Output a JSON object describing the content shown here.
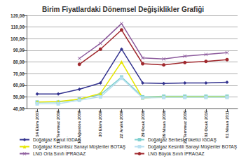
{
  "chart_data": {
    "type": "line",
    "title": "Birim Fiyatlardaki Dönemsel Değişiklikler Grafiği",
    "categories": [
      "14 Ekim 2007",
      "15 Temmuz 2008",
      "10 Ağustos 2008",
      "30 Ekim 2008",
      "22 Aralık 2008",
      "29 Ocak 2009",
      "09 Nisan 2009",
      "29 Temmuz 2009",
      "03 Ocak 2010",
      "01 Nisan 2011"
    ],
    "series": [
      {
        "name": "Doğalgaz Konut İGDAŞ",
        "color": "#33338f",
        "marker": "diamond",
        "values": [
          52.5,
          52.5,
          56.5,
          62,
          91,
          62,
          61.5,
          62,
          62,
          62.5
        ]
      },
      {
        "name": "Doğalgaz Serbest Tüketici İGDAŞ",
        "color": "#7fd0d0",
        "marker": "square",
        "values": [
          45.5,
          45.5,
          48,
          52,
          67,
          50,
          50.5,
          50.5,
          50.5,
          50.5
        ]
      },
      {
        "name": "Doğalgaz Kesintisiz Sanayi Müşteriler BOTAŞ",
        "color": "#e6e600",
        "marker": "triangle",
        "values": [
          45.5,
          46,
          48,
          53,
          80,
          49,
          50,
          50,
          50,
          50
        ]
      },
      {
        "name": "Doğalgaz Kesintili Sanayi Müşteriler BOTAŞ",
        "color": "#b8e0f0",
        "marker": "square",
        "values": [
          44,
          44,
          47,
          50,
          66,
          49,
          49.5,
          49.5,
          49.5,
          49.5
        ]
      },
      {
        "name": "LNG Orta Sınıfı İPRAGAZ",
        "color": "#8c5a9c",
        "marker": "x",
        "values": [
          null,
          null,
          83,
          96,
          113,
          83.5,
          82.5,
          85,
          86.5,
          88
        ]
      },
      {
        "name": "LNG Büyük Sınıfı İPRAGAZ",
        "color": "#a0282d",
        "marker": "circle",
        "values": [
          null,
          null,
          78,
          91,
          107.5,
          78.5,
          77.5,
          79.5,
          80.5,
          82
        ]
      }
    ],
    "ylim": [
      40,
      120
    ],
    "yticks": [
      {
        "value": 40,
        "label": "40,00"
      },
      {
        "value": 50,
        "label": "50,00"
      },
      {
        "value": 60,
        "label": "60,00"
      },
      {
        "value": 70,
        "label": "70,00"
      },
      {
        "value": 80,
        "label": "80,00"
      },
      {
        "value": 90,
        "label": "90,00"
      },
      {
        "value": 100,
        "label": "100,00"
      },
      {
        "value": 110,
        "label": "110,00"
      },
      {
        "value": 120,
        "label": "120,00"
      }
    ],
    "grid": true,
    "legend": "bottom"
  }
}
